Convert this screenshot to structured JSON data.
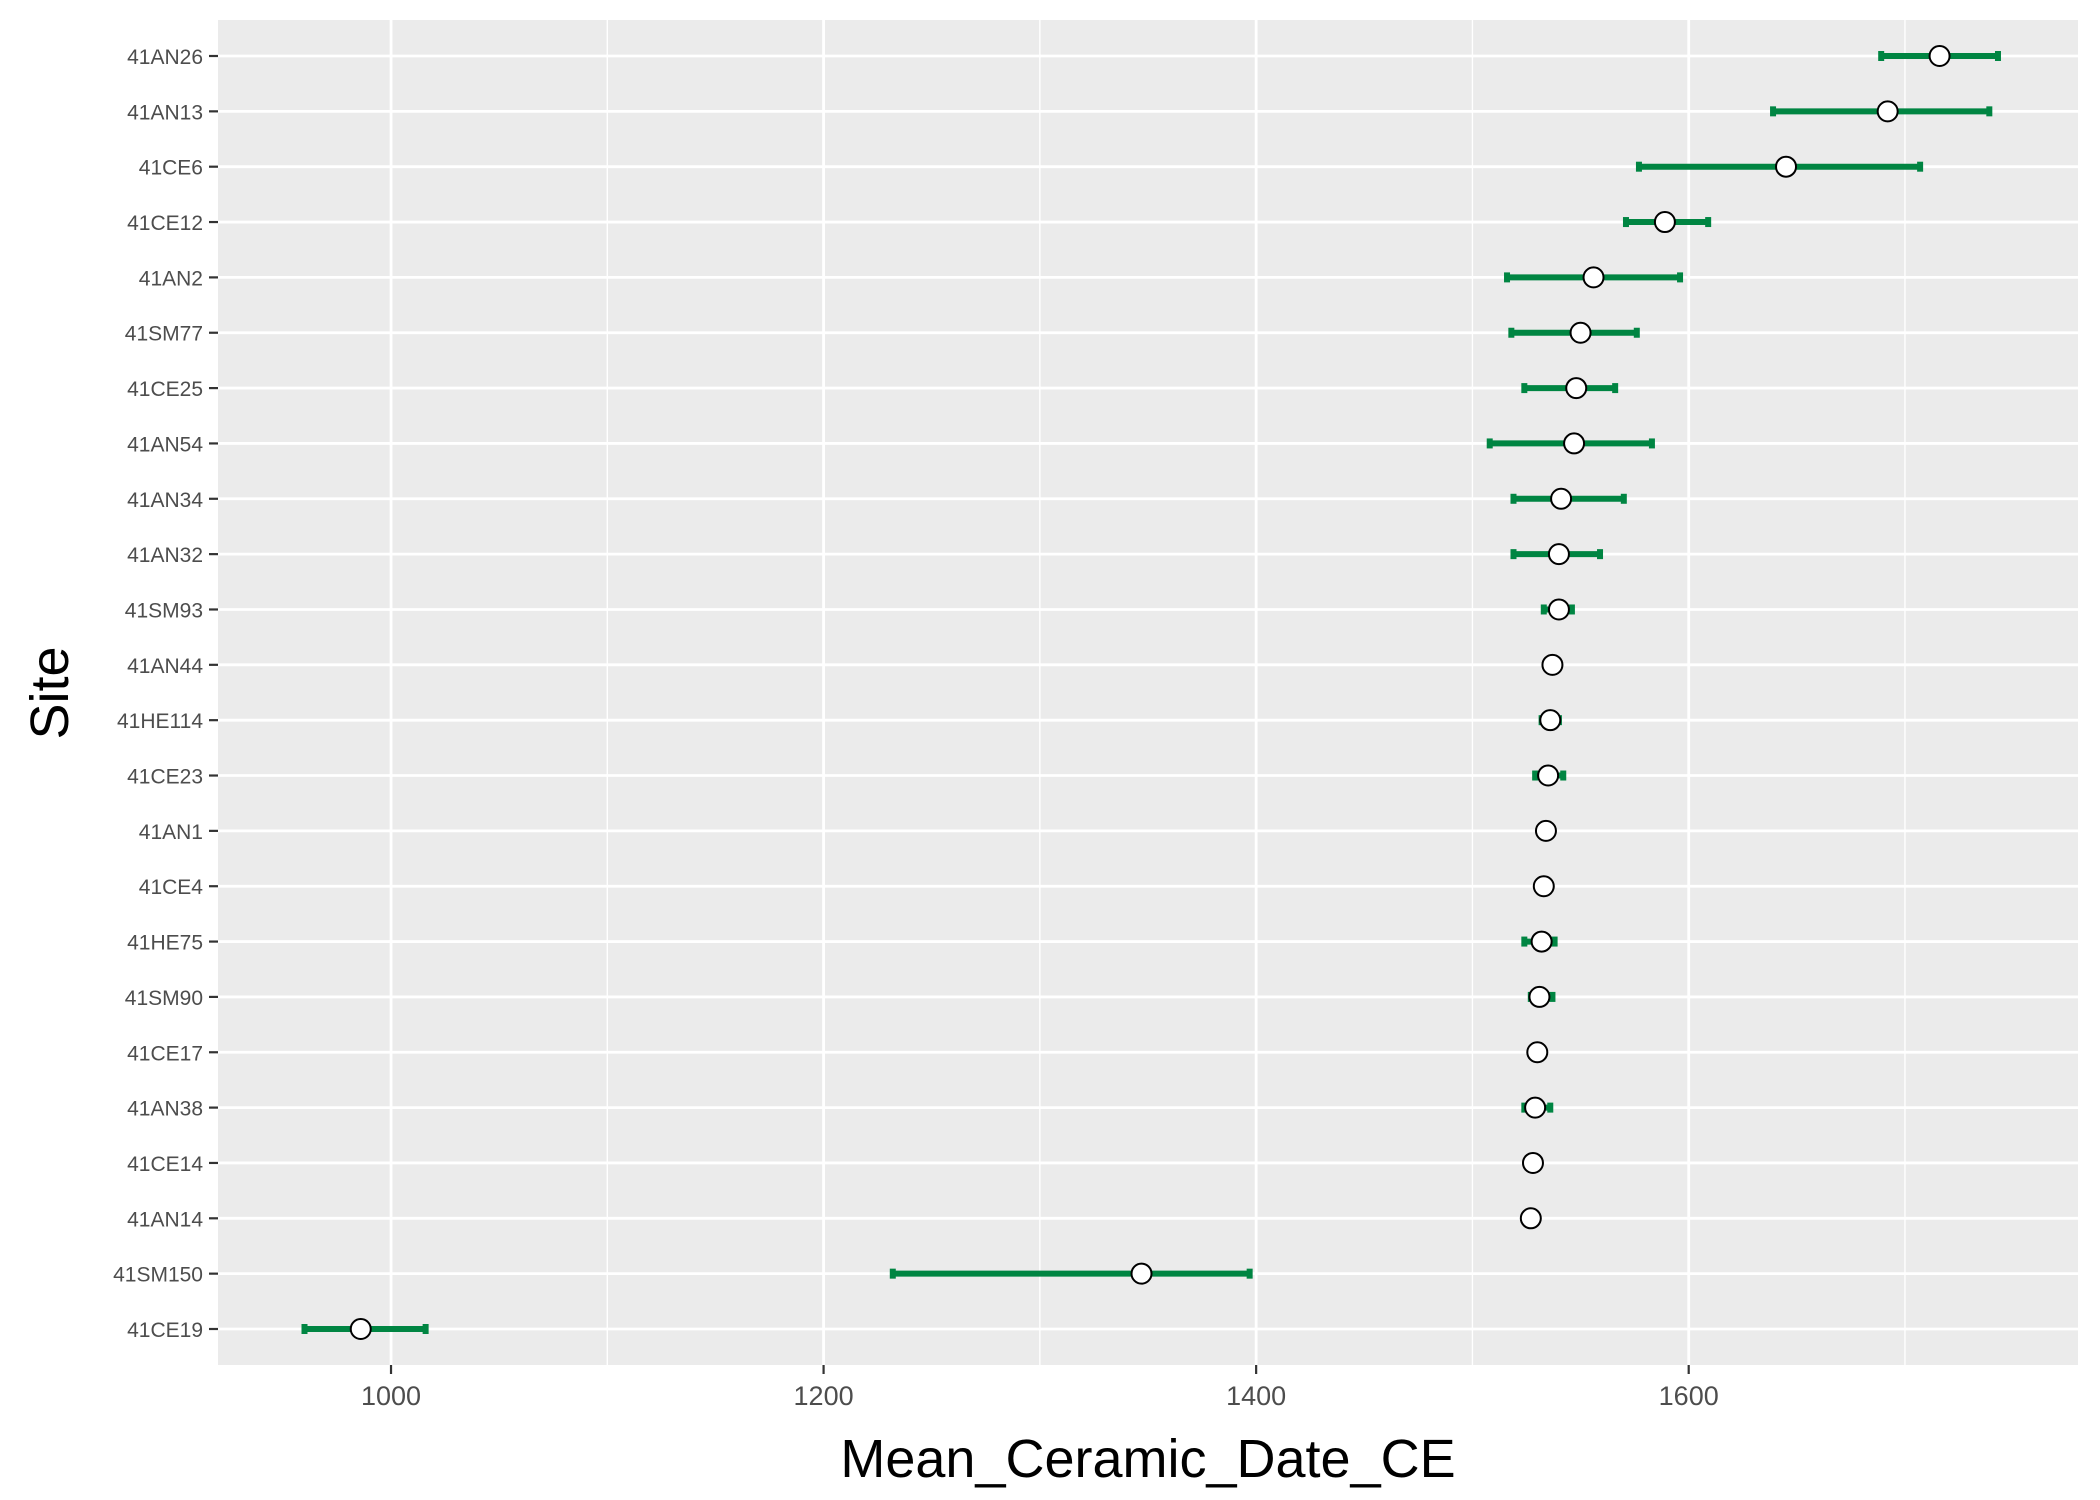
{
  "chart_data": {
    "type": "errorbar-dot",
    "xlabel": "Mean_Ceramic_Date_CE",
    "ylabel": "Site",
    "xlim": [
      920,
      1780
    ],
    "x_ticks": [
      1000,
      1200,
      1400,
      1600
    ],
    "x_minor_ticks": [
      1100,
      1300,
      1500,
      1700
    ],
    "grid": true,
    "colors": {
      "panel": "#ebebeb",
      "grid": "#ffffff",
      "errorbar": "#008542",
      "point_fill": "#ffffff",
      "point_stroke": "#000000",
      "tick": "#333333"
    },
    "sites": [
      {
        "name": "41AN26",
        "mean": 1716,
        "low": 1689,
        "high": 1743
      },
      {
        "name": "41AN13",
        "mean": 1692,
        "low": 1639,
        "high": 1739
      },
      {
        "name": "41CE6",
        "mean": 1645,
        "low": 1577,
        "high": 1707
      },
      {
        "name": "41CE12",
        "mean": 1589,
        "low": 1571,
        "high": 1609
      },
      {
        "name": "41AN2",
        "mean": 1556,
        "low": 1516,
        "high": 1596
      },
      {
        "name": "41SM77",
        "mean": 1550,
        "low": 1518,
        "high": 1576
      },
      {
        "name": "41CE25",
        "mean": 1548,
        "low": 1524,
        "high": 1566
      },
      {
        "name": "41AN54",
        "mean": 1547,
        "low": 1508,
        "high": 1583
      },
      {
        "name": "41AN34",
        "mean": 1541,
        "low": 1519,
        "high": 1570
      },
      {
        "name": "41AN32",
        "mean": 1540,
        "low": 1519,
        "high": 1559
      },
      {
        "name": "41SM93",
        "mean": 1540,
        "low": 1533,
        "high": 1546
      },
      {
        "name": "41AN44",
        "mean": 1537,
        "low": 1537,
        "high": 1537
      },
      {
        "name": "41HE114",
        "mean": 1536,
        "low": 1532,
        "high": 1540
      },
      {
        "name": "41CE23",
        "mean": 1535,
        "low": 1529,
        "high": 1542
      },
      {
        "name": "41AN1",
        "mean": 1534,
        "low": 1534,
        "high": 1534
      },
      {
        "name": "41CE4",
        "mean": 1533,
        "low": 1533,
        "high": 1533
      },
      {
        "name": "41HE75",
        "mean": 1532,
        "low": 1524,
        "high": 1538
      },
      {
        "name": "41SM90",
        "mean": 1531,
        "low": 1527,
        "high": 1537
      },
      {
        "name": "41CE17",
        "mean": 1530,
        "low": 1530,
        "high": 1530
      },
      {
        "name": "41AN38",
        "mean": 1529,
        "low": 1524,
        "high": 1536
      },
      {
        "name": "41CE14",
        "mean": 1528,
        "low": 1528,
        "high": 1528
      },
      {
        "name": "41AN14",
        "mean": 1527,
        "low": 1527,
        "high": 1527
      },
      {
        "name": "41SM150",
        "mean": 1347,
        "low": 1232,
        "high": 1397
      },
      {
        "name": "41CE19",
        "mean": 986,
        "low": 960,
        "high": 1016
      }
    ]
  }
}
